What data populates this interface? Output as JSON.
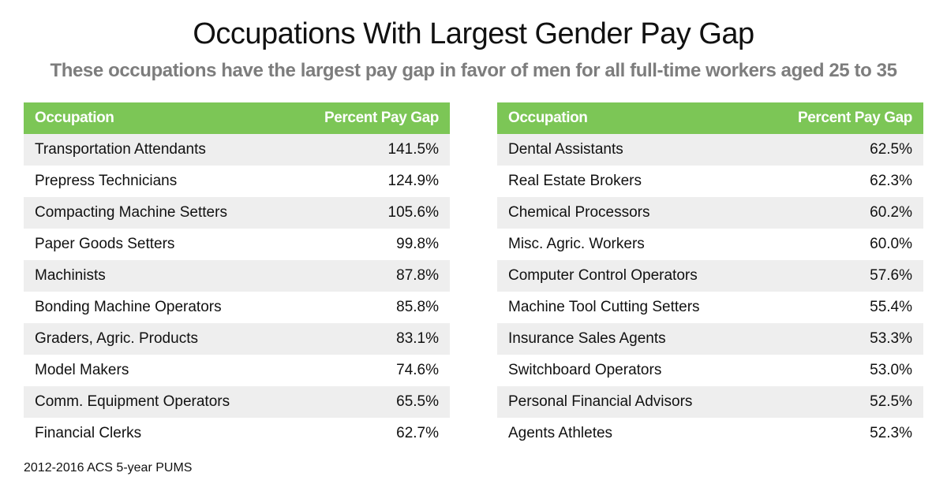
{
  "title": "Occupations With Largest Gender Pay Gap",
  "subtitle": "These occupations have the largest pay gap in favor of men for all full-time workers aged 25 to 35",
  "footer": "2012-2016 ACS 5-year PUMS",
  "colors": {
    "header": "#7cc656",
    "stripe": "#eeeeee"
  },
  "chart_data": {
    "type": "table",
    "title": "Occupations With Largest Gender Pay Gap",
    "columns": [
      "Occupation",
      "Percent Pay Gap"
    ],
    "tables": [
      {
        "headers": [
          "Occupation",
          "Percent Pay Gap"
        ],
        "rows": [
          {
            "occupation": "Transportation Attendants",
            "gap": "141.5%"
          },
          {
            "occupation": "Prepress Technicians",
            "gap": "124.9%"
          },
          {
            "occupation": "Compacting Machine Setters",
            "gap": "105.6%"
          },
          {
            "occupation": "Paper Goods Setters",
            "gap": "99.8%"
          },
          {
            "occupation": "Machinists",
            "gap": "87.8%"
          },
          {
            "occupation": "Bonding Machine Operators",
            "gap": "85.8%"
          },
          {
            "occupation": "Graders, Agric. Products",
            "gap": "83.1%"
          },
          {
            "occupation": "Model Makers",
            "gap": "74.6%"
          },
          {
            "occupation": "Comm. Equipment Operators",
            "gap": "65.5%"
          },
          {
            "occupation": "Financial Clerks",
            "gap": "62.7%"
          }
        ]
      },
      {
        "headers": [
          "Occupation",
          "Percent Pay Gap"
        ],
        "rows": [
          {
            "occupation": "Dental Assistants",
            "gap": "62.5%"
          },
          {
            "occupation": "Real Estate Brokers",
            "gap": "62.3%"
          },
          {
            "occupation": "Chemical Processors",
            "gap": "60.2%"
          },
          {
            "occupation": "Misc. Agric. Workers",
            "gap": "60.0%"
          },
          {
            "occupation": "Computer Control Operators",
            "gap": "57.6%"
          },
          {
            "occupation": "Machine Tool Cutting Setters",
            "gap": "55.4%"
          },
          {
            "occupation": "Insurance Sales Agents",
            "gap": "53.3%"
          },
          {
            "occupation": "Switchboard Operators",
            "gap": "53.0%"
          },
          {
            "occupation": "Personal Financial Advisors",
            "gap": "52.5%"
          },
          {
            "occupation": "Agents Athletes",
            "gap": "52.3%"
          }
        ]
      }
    ]
  }
}
